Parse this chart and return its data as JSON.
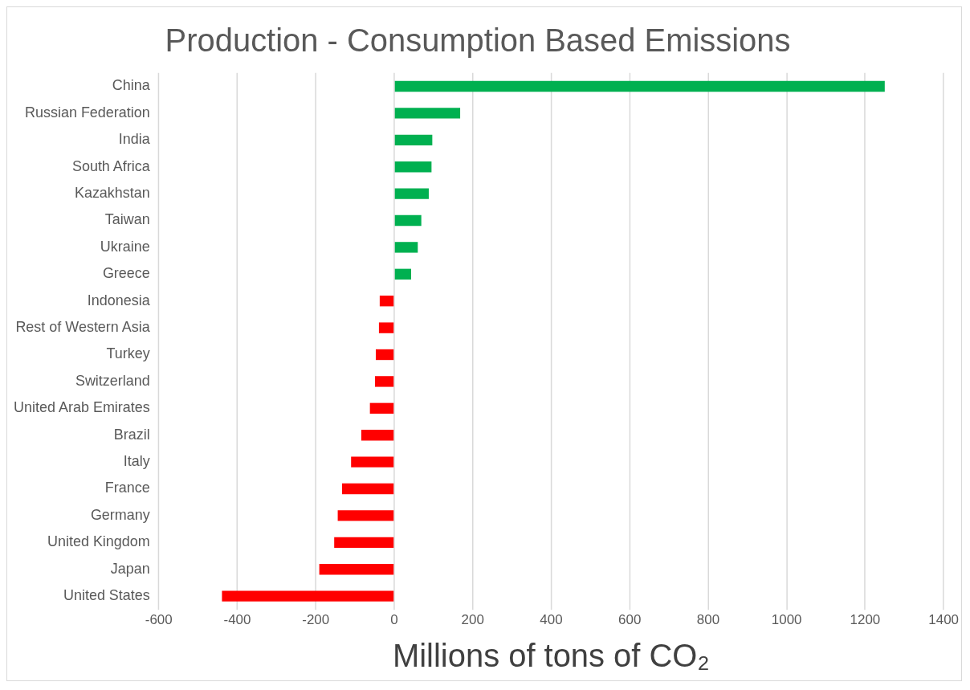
{
  "chart_data": {
    "type": "bar",
    "orientation": "horizontal",
    "title": "Production - Consumption Based Emissions",
    "xlabel": "Millions of tons of CO₂",
    "categories": [
      "China",
      "Russian Federation",
      "India",
      "South Africa",
      "Kazakhstan",
      "Taiwan",
      "Ukraine",
      "Greece",
      "Indonesia",
      "Rest of Western Asia",
      "Turkey",
      "Switzerland",
      "United Arab Emirates",
      "Brazil",
      "Italy",
      "France",
      "Germany",
      "United Kingdom",
      "Japan",
      "United States"
    ],
    "values": [
      1250,
      168,
      97,
      95,
      88,
      69,
      60,
      43,
      -37,
      -39,
      -47,
      -49,
      -62,
      -84,
      -110,
      -133,
      -144,
      -153,
      -191,
      -439
    ],
    "colors": [
      "#00b050",
      "#00b050",
      "#00b050",
      "#00b050",
      "#00b050",
      "#00b050",
      "#00b050",
      "#00b050",
      "#ff0000",
      "#ff0000",
      "#ff0000",
      "#ff0000",
      "#ff0000",
      "#ff0000",
      "#ff0000",
      "#ff0000",
      "#ff0000",
      "#ff0000",
      "#ff0000",
      "#ff0000"
    ],
    "xlim": [
      -600,
      1400
    ],
    "xticks": [
      -600,
      -400,
      -200,
      0,
      200,
      400,
      600,
      800,
      1000,
      1200,
      1400
    ],
    "grid": "x"
  }
}
